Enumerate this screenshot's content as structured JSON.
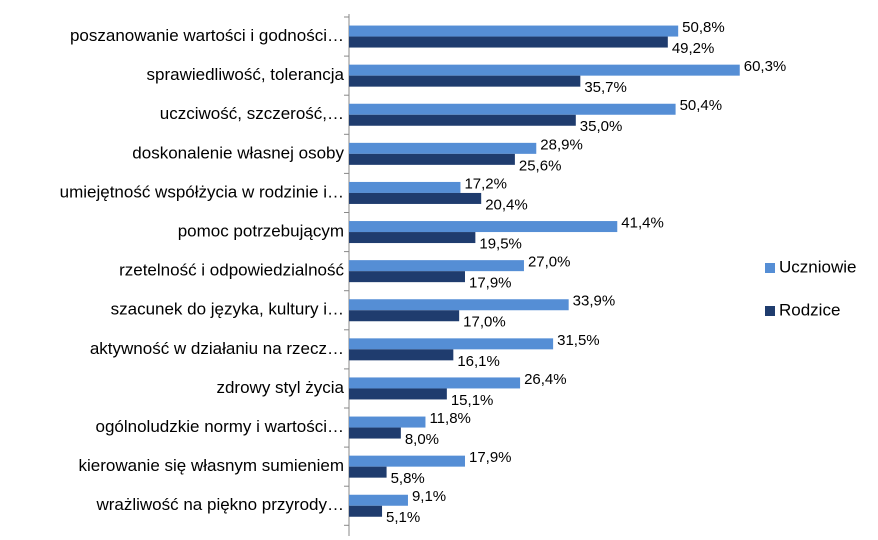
{
  "chart_data": {
    "type": "hbar",
    "categories": [
      "poszanowanie wartości i godności…",
      "sprawiedliwość, tolerancja",
      "uczciwość, szczerość,…",
      "doskonalenie własnej osoby",
      "umiejętność współżycia w rodzinie i…",
      "pomoc potrzebującym",
      "rzetelność i odpowiedzialność",
      "szacunek do języka, kultury i…",
      "aktywność w działaniu na rzecz…",
      "zdrowy styl życia",
      "ogólnoludzkie normy i wartości…",
      "kierowanie się własnym sumieniem",
      "wrażliwość na piękno przyrody…"
    ],
    "series": [
      {
        "name": "Uczniowie",
        "color": "#558ed5",
        "values": [
          50.8,
          60.3,
          50.4,
          28.9,
          17.2,
          41.4,
          27.0,
          33.9,
          31.5,
          26.4,
          11.8,
          17.9,
          9.1
        ],
        "value_labels": [
          "50,8%",
          "60,3%",
          "50,4%",
          "28,9%",
          "17,2%",
          "41,4%",
          "27,0%",
          "33,9%",
          "31,5%",
          "26,4%",
          "11,8%",
          "17,9%",
          "9,1%"
        ]
      },
      {
        "name": "Rodzice",
        "color": "#1f3c6e",
        "values": [
          49.2,
          35.7,
          35.0,
          25.6,
          20.4,
          19.5,
          17.9,
          17.0,
          16.1,
          15.1,
          8.0,
          5.8,
          5.1
        ],
        "value_labels": [
          "49,2%",
          "35,7%",
          "35,0%",
          "25,6%",
          "20,4%",
          "19,5%",
          "17,9%",
          "17,0%",
          "16,1%",
          "15,1%",
          "8,0%",
          "5,8%",
          "5,1%"
        ]
      }
    ],
    "xlim": [
      0,
      70
    ],
    "legend": "right"
  }
}
